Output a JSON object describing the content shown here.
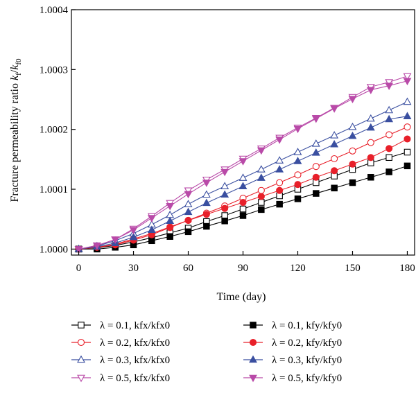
{
  "chart_data": {
    "type": "line",
    "title": "",
    "xlabel": "Time (day)",
    "ylabel": "Fracture permeability ratio k_f/k_f0",
    "xlim": [
      -4,
      184
    ],
    "ylim": [
      0.99999,
      1.0004
    ],
    "x_ticks": [
      "0",
      "30",
      "60",
      "90",
      "120",
      "150",
      "180"
    ],
    "y_ticks": [
      "1.0000",
      "1.0001",
      "1.0002",
      "1.0003",
      "1.0004"
    ],
    "x": [
      0,
      10,
      20,
      30,
      40,
      50,
      60,
      70,
      80,
      90,
      100,
      110,
      120,
      130,
      140,
      150,
      160,
      170,
      180
    ],
    "grid": false,
    "legend_placement": "below plot, two columns",
    "series": [
      {
        "name": "λ = 0.1, kfx/kfx0",
        "color": "#000000",
        "marker": "square-open",
        "values": [
          1.0,
          1.000002,
          1.000006,
          1.000012,
          1.000019,
          1.000027,
          1.000035,
          1.000046,
          1.000056,
          1.000067,
          1.000078,
          1.000089,
          1.0001,
          1.000111,
          1.000122,
          1.000133,
          1.000144,
          1.000153,
          1.000162
        ]
      },
      {
        "name": "λ = 0.2, kfx/kfx0",
        "color": "#e8202a",
        "marker": "circle-open",
        "values": [
          1.0,
          1.000003,
          1.000008,
          1.000017,
          1.000026,
          1.000037,
          1.000048,
          1.00006,
          1.000072,
          1.000085,
          1.000098,
          1.000111,
          1.000124,
          1.000138,
          1.000151,
          1.000164,
          1.000178,
          1.000191,
          1.000204
        ]
      },
      {
        "name": "λ = 0.3, kfx/kfx0",
        "color": "#3a4fa0",
        "marker": "triangle-up-open",
        "values": [
          1.0,
          1.000005,
          1.000014,
          1.000026,
          1.000041,
          1.000057,
          1.000075,
          1.000091,
          1.000105,
          1.000119,
          1.000133,
          1.000148,
          1.000162,
          1.000176,
          1.00019,
          1.000204,
          1.000218,
          1.000232,
          1.000246
        ]
      },
      {
        "name": "λ = 0.5, kfx/kfx0",
        "color": "#b94aa8",
        "marker": "triangle-down-open",
        "values": [
          1.0,
          1.000006,
          1.000016,
          1.000034,
          1.000055,
          1.000077,
          1.000098,
          1.000116,
          1.000133,
          1.000151,
          1.000168,
          1.000186,
          1.000203,
          1.000219,
          1.000236,
          1.000254,
          1.000271,
          1.000279,
          1.000289
        ]
      },
      {
        "name": "λ = 0.1, kfy/kfy0",
        "color": "#000000",
        "marker": "square-filled",
        "values": [
          1.0,
          1.0,
          1.000003,
          1.000007,
          1.000014,
          1.000021,
          1.000029,
          1.000038,
          1.000047,
          1.000056,
          1.000066,
          1.000075,
          1.000084,
          1.000093,
          1.000102,
          1.000111,
          1.00012,
          1.000129,
          1.000139
        ]
      },
      {
        "name": "λ = 0.2, kfy/kfy0",
        "color": "#e8202a",
        "marker": "circle-filled",
        "values": [
          1.0,
          1.000003,
          1.000007,
          1.000015,
          1.000024,
          1.000036,
          1.000048,
          1.000058,
          1.000068,
          1.000078,
          1.000088,
          1.000098,
          1.000108,
          1.00012,
          1.000131,
          1.000142,
          1.000153,
          1.000168,
          1.000184
        ]
      },
      {
        "name": "λ = 0.3, kfy/kfy0",
        "color": "#3a4fa0",
        "marker": "triangle-up-filled",
        "values": [
          1.0,
          1.000004,
          1.00001,
          1.00002,
          1.000032,
          1.000047,
          1.000062,
          1.000077,
          1.000091,
          1.000105,
          1.000119,
          1.000133,
          1.000147,
          1.000161,
          1.000175,
          1.000189,
          1.000203,
          1.000217,
          1.000222
        ]
      },
      {
        "name": "λ = 0.5, kfy/kfy0",
        "color": "#b94aa8",
        "marker": "triangle-down-filled",
        "values": [
          1.0,
          1.000006,
          1.000016,
          1.000032,
          1.000052,
          1.000072,
          1.000092,
          1.000111,
          1.000129,
          1.000147,
          1.000165,
          1.000183,
          1.000201,
          1.000218,
          1.000235,
          1.000251,
          1.000266,
          1.000273,
          1.000281
        ]
      }
    ]
  }
}
